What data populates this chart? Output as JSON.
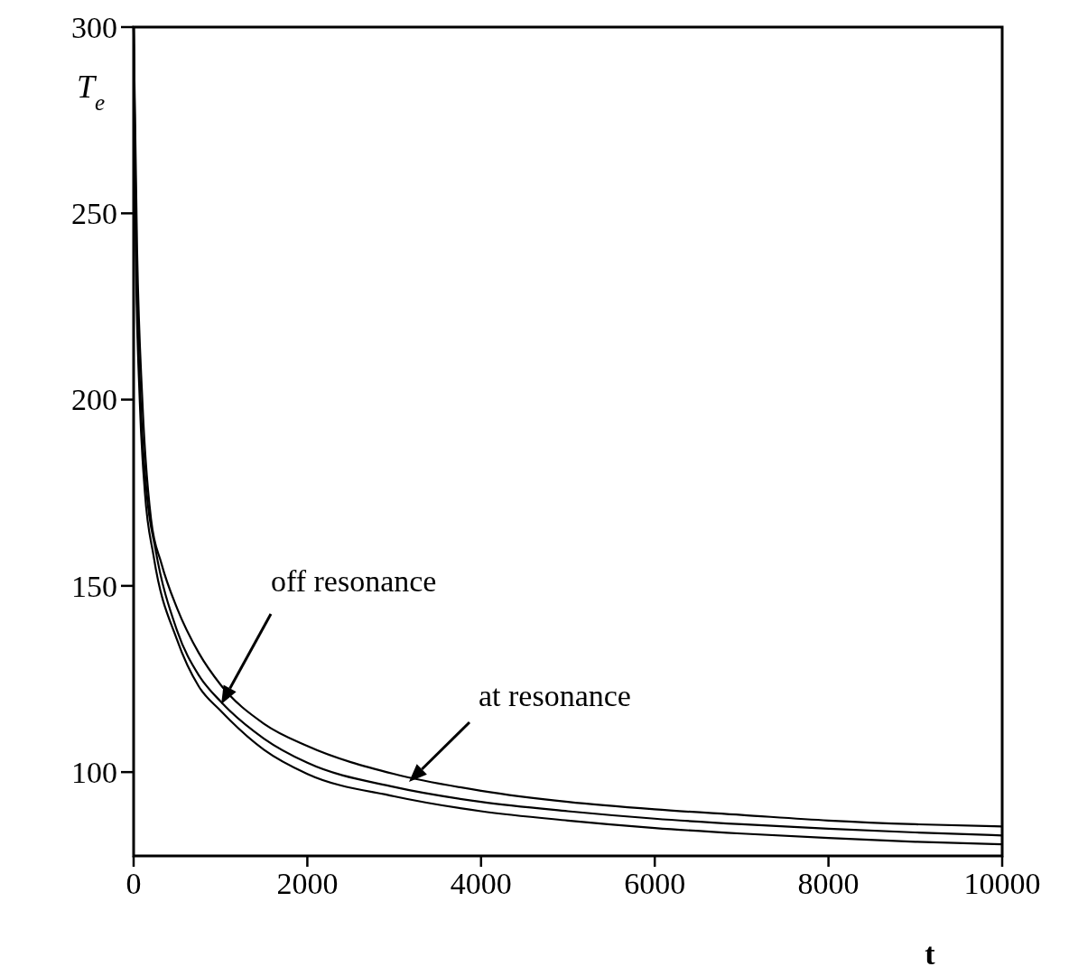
{
  "chart_data": {
    "type": "line",
    "xlabel": "t",
    "ylabel": "T$_{e}$",
    "xlim": [
      0,
      10000
    ],
    "ylim": [
      77.5,
      300
    ],
    "xticks": [
      0,
      2000,
      4000,
      6000,
      8000,
      10000
    ],
    "yticks": [
      100,
      150,
      200,
      250,
      300
    ],
    "grid": false,
    "marker": "none",
    "line_style": "solid",
    "series": [
      {
        "color": "#000000",
        "x": [
          0,
          40,
          100,
          200,
          320,
          500,
          750,
          1000,
          1500,
          2000,
          3000,
          4000,
          5000,
          6000,
          7000,
          8000,
          9000,
          10000
        ],
        "values": [
          300,
          240,
          200,
          168,
          156,
          144,
          132,
          123.5,
          113,
          107,
          99.5,
          95,
          92,
          90,
          88.5,
          87,
          86,
          85.4
        ]
      },
      {
        "color": "#000000",
        "x": [
          0,
          30,
          80,
          150,
          250,
          500,
          750,
          1000,
          1500,
          2000,
          3000,
          4000,
          5000,
          6000,
          7000,
          8000,
          9000,
          10000
        ],
        "values": [
          300,
          240,
          200,
          175,
          160,
          138,
          126,
          119,
          109,
          102.5,
          96,
          92,
          89.5,
          87.5,
          86,
          84.8,
          83.8,
          83
        ]
      },
      {
        "color": "#000000",
        "x": [
          0,
          25,
          70,
          130,
          230,
          500,
          750,
          1000,
          1500,
          2000,
          3000,
          4000,
          5000,
          6000,
          7000,
          8000,
          9000,
          10000
        ],
        "values": [
          300,
          240,
          200,
          175,
          158,
          135.5,
          123,
          116.5,
          106,
          99.5,
          93.5,
          89.5,
          87,
          85,
          83.5,
          82.3,
          81.3,
          80.6
        ]
      }
    ],
    "annotations": [
      "off resonance",
      "at resonance"
    ]
  }
}
